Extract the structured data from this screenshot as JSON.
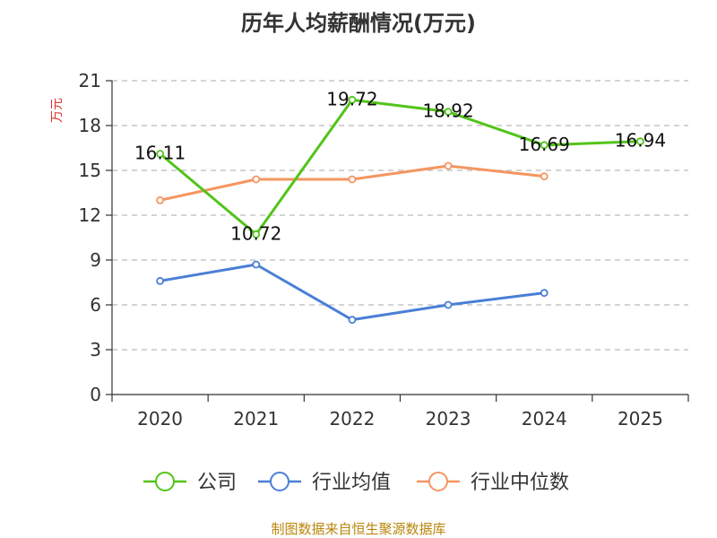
{
  "chart_data": {
    "type": "line",
    "title": "历年人均薪酬情况(万元)",
    "ylabel": "万元",
    "xlabel": "",
    "categories": [
      "2020",
      "2021",
      "2022",
      "2023",
      "2024",
      "2025"
    ],
    "ylim": [
      0,
      21
    ],
    "yticks": [
      0,
      3,
      6,
      9,
      12,
      15,
      18,
      21
    ],
    "grid": true,
    "legend_position": "bottom",
    "series": [
      {
        "name": "公司",
        "color": "#52c41a",
        "values": [
          16.11,
          10.72,
          19.72,
          18.92,
          16.69,
          16.94
        ],
        "labels": [
          "16.11",
          "10.72",
          "19.72",
          "18.92",
          "16.69",
          "16.94"
        ]
      },
      {
        "name": "行业均值",
        "color": "#4a7fd6",
        "values": [
          7.6,
          8.7,
          5.0,
          6.0,
          6.8,
          null
        ]
      },
      {
        "name": "行业中位数",
        "color": "#f59560",
        "values": [
          13.0,
          14.4,
          14.4,
          15.3,
          14.6,
          null
        ]
      }
    ],
    "source": "制图数据来自恒生聚源数据库"
  }
}
